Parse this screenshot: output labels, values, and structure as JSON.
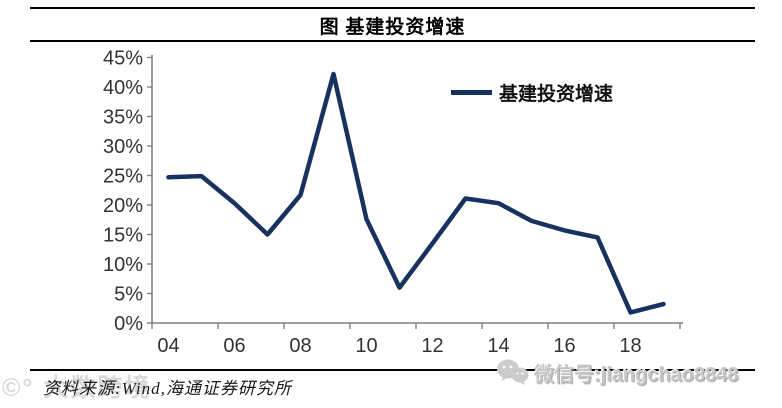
{
  "header": {
    "title": "图  基建投资增速"
  },
  "chart_data": {
    "type": "line",
    "title": "图 基建投资增速",
    "categories": [
      "04",
      "05",
      "06",
      "07",
      "08",
      "09",
      "10",
      "11",
      "12",
      "13",
      "14",
      "15",
      "16",
      "17",
      "18",
      "19"
    ],
    "series": [
      {
        "name": "基建投资增速",
        "values": [
          24.7,
          24.9,
          20.3,
          15.0,
          21.7,
          42.2,
          17.6,
          6.0,
          13.5,
          21.1,
          20.3,
          17.3,
          15.7,
          14.5,
          1.8,
          3.2
        ]
      }
    ],
    "xlabel": "",
    "ylabel": "",
    "ylim": [
      0,
      45
    ],
    "y_tick_step": 5,
    "y_tick_labels": [
      "0%",
      "5%",
      "10%",
      "15%",
      "20%",
      "25%",
      "30%",
      "35%",
      "40%",
      "45%"
    ],
    "x_tick_labels": [
      "04",
      "06",
      "08",
      "10",
      "12",
      "14",
      "16",
      "18"
    ],
    "grid": false,
    "legend_position": "top-right"
  },
  "legend": {
    "label": "基建投资增速"
  },
  "footer": {
    "source": "资料来源:Wind,海通证券研究所"
  },
  "watermarks": {
    "left_logo_text": "©° 大数跨境",
    "right_text": "微信号:jiangchao8848"
  },
  "colors": {
    "line": "#17325f",
    "axis": "#808080",
    "tick_label": "#333333",
    "watermark_gray": "#c6c6c6"
  }
}
